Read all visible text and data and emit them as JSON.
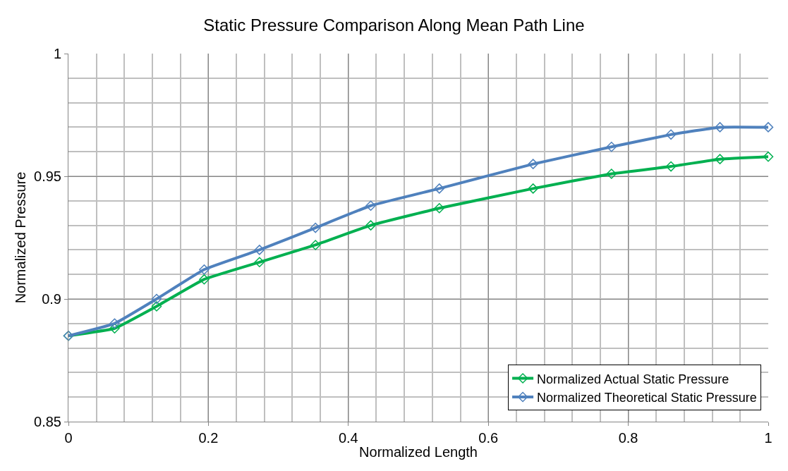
{
  "chart_data": {
    "type": "line",
    "title": "Static Pressure Comparison Along Mean Path Line",
    "xlabel": "Normalized Length",
    "ylabel": "Normalized Pressure",
    "x": [
      0,
      0.066,
      0.126,
      0.194,
      0.273,
      0.353,
      0.432,
      0.53,
      0.664,
      0.776,
      0.861,
      0.931,
      1.0
    ],
    "series": [
      {
        "name": "Normalized Actual Static Pressure",
        "color": "#00b050",
        "values": [
          0.885,
          0.888,
          0.897,
          0.908,
          0.915,
          0.922,
          0.93,
          0.937,
          0.945,
          0.951,
          0.954,
          0.957,
          0.958
        ]
      },
      {
        "name": "Normalized Theoretical Static Pressure",
        "color": "#4f81bd",
        "values": [
          0.885,
          0.89,
          0.9,
          0.912,
          0.92,
          0.929,
          0.938,
          0.945,
          0.955,
          0.962,
          0.967,
          0.97,
          0.97
        ]
      }
    ],
    "xlim": [
      0,
      1
    ],
    "xticks": [
      0,
      0.2,
      0.4,
      0.6,
      0.8,
      1
    ],
    "ylim": [
      0.85,
      1
    ],
    "yticks": [
      0.85,
      0.9,
      0.95,
      1
    ],
    "grid": true,
    "legend": "bottom right",
    "marker": "diamond",
    "line_style": "solid"
  }
}
